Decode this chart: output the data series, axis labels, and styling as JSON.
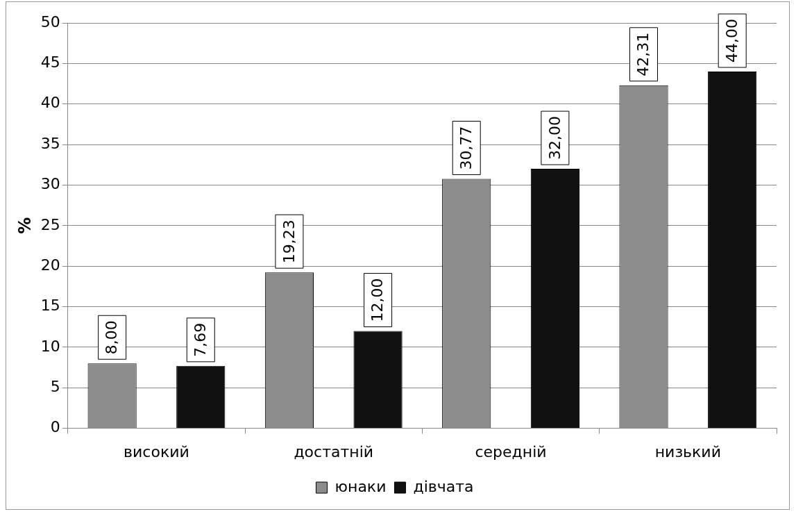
{
  "chart_data": {
    "type": "bar",
    "ylabel": "%",
    "categories": [
      "високий",
      "достатній",
      "середній",
      "низький"
    ],
    "series": [
      {
        "name": "юнаки",
        "color": "#8c8c8c",
        "values": [
          8.0,
          19.23,
          30.77,
          42.31
        ],
        "value_labels": [
          "8,00",
          "19,23",
          "30,77",
          "42,31"
        ]
      },
      {
        "name": "дівчата",
        "color": "#111111",
        "values": [
          7.69,
          12.0,
          32.0,
          44.0
        ],
        "value_labels": [
          "7,69",
          "12,00",
          "32,00",
          "44,00"
        ]
      }
    ],
    "ylim": [
      0,
      50
    ],
    "yticks": [
      0,
      5,
      10,
      15,
      20,
      25,
      30,
      35,
      40,
      45,
      50
    ],
    "grid": "y",
    "legend": "bottom"
  }
}
